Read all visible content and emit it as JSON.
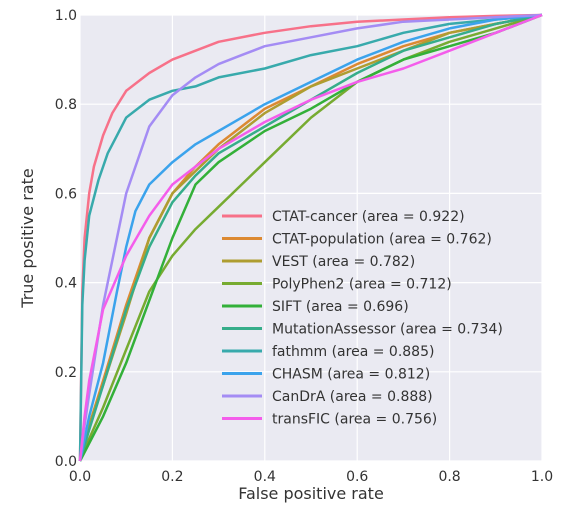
{
  "chart_data": {
    "type": "line",
    "title": "",
    "xlabel": "False positive rate",
    "ylabel": "True positive rate",
    "xlim": [
      0,
      1
    ],
    "ylim": [
      0,
      1
    ],
    "xticks": [
      "0.0",
      "0.2",
      "0.4",
      "0.6",
      "0.8",
      "1.0"
    ],
    "yticks": [
      "0.0",
      "0.2",
      "0.4",
      "0.6",
      "0.8",
      "1.0"
    ],
    "grid": true,
    "legend_position": "lower-right",
    "series": [
      {
        "name": "CTAT-cancer (area = 0.922)",
        "color": "#f77189",
        "x": [
          0,
          0.005,
          0.01,
          0.02,
          0.03,
          0.05,
          0.07,
          0.1,
          0.15,
          0.2,
          0.25,
          0.3,
          0.4,
          0.5,
          0.6,
          0.7,
          0.8,
          0.9,
          1.0
        ],
        "y": [
          0,
          0.38,
          0.5,
          0.6,
          0.66,
          0.73,
          0.78,
          0.83,
          0.87,
          0.9,
          0.92,
          0.94,
          0.96,
          0.975,
          0.985,
          0.99,
          0.995,
          0.998,
          1.0
        ]
      },
      {
        "name": "CTAT-population (area = 0.762)",
        "color": "#dc8932",
        "x": [
          0,
          0.02,
          0.05,
          0.1,
          0.15,
          0.2,
          0.25,
          0.3,
          0.35,
          0.4,
          0.5,
          0.6,
          0.7,
          0.8,
          0.9,
          1.0
        ],
        "y": [
          0,
          0.08,
          0.18,
          0.35,
          0.5,
          0.6,
          0.66,
          0.71,
          0.75,
          0.79,
          0.84,
          0.89,
          0.93,
          0.96,
          0.98,
          1.0
        ]
      },
      {
        "name": "VEST (area = 0.782)",
        "color": "#ae9d31",
        "x": [
          0,
          0.02,
          0.05,
          0.1,
          0.15,
          0.2,
          0.25,
          0.3,
          0.35,
          0.4,
          0.5,
          0.6,
          0.7,
          0.8,
          0.9,
          1.0
        ],
        "y": [
          0,
          0.08,
          0.17,
          0.33,
          0.5,
          0.6,
          0.65,
          0.7,
          0.74,
          0.78,
          0.84,
          0.88,
          0.92,
          0.96,
          0.98,
          1.0
        ]
      },
      {
        "name": "PolyPhen2 (area = 0.712)",
        "color": "#77ab31",
        "x": [
          0,
          0.02,
          0.05,
          0.1,
          0.15,
          0.2,
          0.25,
          0.3,
          0.35,
          0.4,
          0.5,
          0.6,
          0.7,
          0.8,
          0.9,
          1.0
        ],
        "y": [
          0,
          0.05,
          0.12,
          0.25,
          0.38,
          0.46,
          0.52,
          0.57,
          0.62,
          0.67,
          0.77,
          0.85,
          0.9,
          0.94,
          0.97,
          1.0
        ]
      },
      {
        "name": "SIFT (area = 0.696)",
        "color": "#33b039",
        "x": [
          0,
          0.05,
          0.1,
          0.15,
          0.2,
          0.25,
          0.3,
          0.4,
          0.5,
          0.6,
          0.7,
          0.8,
          0.9,
          1.0
        ],
        "y": [
          0,
          0.1,
          0.22,
          0.36,
          0.5,
          0.62,
          0.67,
          0.74,
          0.79,
          0.85,
          0.9,
          0.93,
          0.96,
          1.0
        ]
      },
      {
        "name": "MutationAssessor (area = 0.734)",
        "color": "#36ad8a",
        "x": [
          0,
          0.02,
          0.05,
          0.1,
          0.15,
          0.2,
          0.25,
          0.3,
          0.4,
          0.5,
          0.6,
          0.7,
          0.8,
          0.9,
          1.0
        ],
        "y": [
          0,
          0.07,
          0.17,
          0.34,
          0.48,
          0.58,
          0.64,
          0.69,
          0.75,
          0.81,
          0.87,
          0.92,
          0.95,
          0.98,
          1.0
        ]
      },
      {
        "name": "fathmm (area = 0.885)",
        "color": "#38aaac",
        "x": [
          0,
          0.005,
          0.01,
          0.02,
          0.04,
          0.06,
          0.08,
          0.1,
          0.15,
          0.2,
          0.25,
          0.3,
          0.4,
          0.5,
          0.6,
          0.7,
          0.8,
          0.9,
          1.0
        ],
        "y": [
          0,
          0.35,
          0.45,
          0.55,
          0.63,
          0.69,
          0.73,
          0.77,
          0.81,
          0.83,
          0.84,
          0.86,
          0.88,
          0.91,
          0.93,
          0.96,
          0.98,
          0.99,
          1.0
        ]
      },
      {
        "name": "CHASM (area = 0.812)",
        "color": "#3ba3ec",
        "x": [
          0,
          0.02,
          0.05,
          0.08,
          0.1,
          0.12,
          0.15,
          0.2,
          0.25,
          0.3,
          0.4,
          0.5,
          0.6,
          0.7,
          0.8,
          0.9,
          1.0
        ],
        "y": [
          0,
          0.1,
          0.22,
          0.38,
          0.48,
          0.56,
          0.62,
          0.67,
          0.71,
          0.74,
          0.8,
          0.85,
          0.9,
          0.94,
          0.97,
          0.99,
          1.0
        ]
      },
      {
        "name": "CanDrA (area = 0.888)",
        "color": "#a48cf4",
        "x": [
          0,
          0.01,
          0.02,
          0.05,
          0.1,
          0.15,
          0.2,
          0.25,
          0.3,
          0.35,
          0.4,
          0.5,
          0.6,
          0.7,
          0.8,
          0.9,
          1.0
        ],
        "y": [
          0,
          0.08,
          0.15,
          0.35,
          0.6,
          0.75,
          0.82,
          0.86,
          0.89,
          0.91,
          0.93,
          0.95,
          0.97,
          0.985,
          0.99,
          0.995,
          1.0
        ]
      },
      {
        "name": "transFIC (area = 0.756)",
        "color": "#f45deb",
        "x": [
          0,
          0.01,
          0.02,
          0.05,
          0.1,
          0.15,
          0.2,
          0.25,
          0.3,
          0.35,
          0.4,
          0.5,
          0.6,
          0.7,
          0.8,
          0.9,
          1.0
        ],
        "y": [
          0,
          0.1,
          0.18,
          0.34,
          0.46,
          0.55,
          0.62,
          0.66,
          0.7,
          0.73,
          0.76,
          0.81,
          0.85,
          0.88,
          0.92,
          0.96,
          1.0
        ]
      }
    ]
  }
}
